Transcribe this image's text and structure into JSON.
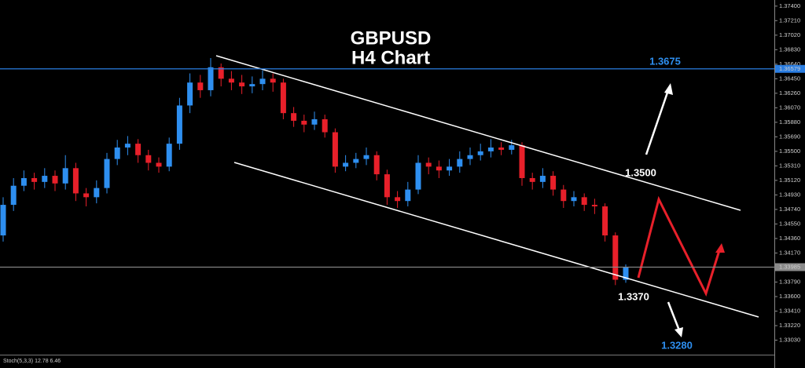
{
  "chart_data": {
    "type": "candlestick",
    "title": "GBPUSD",
    "subtitle": "H4 Chart",
    "up_color": "#2e8ff0",
    "down_color": "#e8202a",
    "ylim": [
      1.3284,
      1.3748
    ],
    "yticks": [
      {
        "value": 1.374,
        "label": "1.37400"
      },
      {
        "value": 1.3721,
        "label": "1.37210"
      },
      {
        "value": 1.3702,
        "label": "1.37020"
      },
      {
        "value": 1.3683,
        "label": "1.36830"
      },
      {
        "value": 1.3664,
        "label": "1.36640"
      },
      {
        "value": 1.3645,
        "label": "1.36450"
      },
      {
        "value": 1.3626,
        "label": "1.36260"
      },
      {
        "value": 1.3607,
        "label": "1.36070"
      },
      {
        "value": 1.3588,
        "label": "1.35880"
      },
      {
        "value": 1.3569,
        "label": "1.35690"
      },
      {
        "value": 1.355,
        "label": "1.35500"
      },
      {
        "value": 1.3531,
        "label": "1.35310"
      },
      {
        "value": 1.3512,
        "label": "1.35120"
      },
      {
        "value": 1.3493,
        "label": "1.34930"
      },
      {
        "value": 1.3474,
        "label": "1.34740"
      },
      {
        "value": 1.3455,
        "label": "1.34550"
      },
      {
        "value": 1.3436,
        "label": "1.34360"
      },
      {
        "value": 1.3417,
        "label": "1.34170"
      },
      {
        "value": 1.3379,
        "label": "1.33790"
      },
      {
        "value": 1.336,
        "label": "1.33600"
      },
      {
        "value": 1.3341,
        "label": "1.33410"
      },
      {
        "value": 1.3322,
        "label": "1.33220"
      },
      {
        "value": 1.3303,
        "label": "1.33030"
      }
    ],
    "hlines": [
      {
        "value": 1.36579,
        "label": "1.36579",
        "color": "#2a7de1"
      },
      {
        "value": 1.33985,
        "label": "1.33985",
        "color": "#8a8a8a"
      }
    ],
    "open": [
      1.344,
      1.348,
      1.3505,
      1.3515,
      1.351,
      1.3518,
      1.3508,
      1.3528,
      1.3495,
      1.349,
      1.3502,
      1.354,
      1.3555,
      1.356,
      1.3545,
      1.3535,
      1.353,
      1.356,
      1.361,
      1.364,
      1.363,
      1.366,
      1.3645,
      1.364,
      1.3635,
      1.3638,
      1.3645,
      1.364,
      1.36,
      1.359,
      1.3585,
      1.3592,
      1.3575,
      1.353,
      1.3535,
      1.354,
      1.3545,
      1.352,
      1.349,
      1.3485,
      1.35,
      1.3535,
      1.353,
      1.3525,
      1.353,
      1.354,
      1.3545,
      1.355,
      1.3555,
      1.3552,
      1.3558,
      1.3515,
      1.351,
      1.3518,
      1.35,
      1.3485,
      1.349,
      1.348,
      1.3478,
      1.344,
      1.3382
    ],
    "high": [
      1.349,
      1.3515,
      1.3525,
      1.3522,
      1.3528,
      1.3525,
      1.3545,
      1.3535,
      1.3502,
      1.3512,
      1.3548,
      1.3565,
      1.357,
      1.3566,
      1.3552,
      1.3542,
      1.3568,
      1.362,
      1.3652,
      1.365,
      1.3672,
      1.3665,
      1.3655,
      1.365,
      1.3648,
      1.3656,
      1.3652,
      1.3645,
      1.3608,
      1.3598,
      1.3602,
      1.3598,
      1.358,
      1.3545,
      1.3548,
      1.3555,
      1.355,
      1.3526,
      1.3498,
      1.351,
      1.3545,
      1.3542,
      1.3538,
      1.354,
      1.355,
      1.3555,
      1.356,
      1.3566,
      1.3562,
      1.3565,
      1.3562,
      1.3522,
      1.3528,
      1.3524,
      1.3506,
      1.3498,
      1.3495,
      1.3488,
      1.3482,
      1.3444,
      1.3402
    ],
    "low": [
      1.3432,
      1.3472,
      1.3498,
      1.35,
      1.3502,
      1.3498,
      1.35,
      1.3485,
      1.3478,
      1.3482,
      1.3495,
      1.3532,
      1.3545,
      1.3535,
      1.3525,
      1.3522,
      1.3524,
      1.3552,
      1.36,
      1.362,
      1.3622,
      1.3635,
      1.363,
      1.3625,
      1.3626,
      1.363,
      1.3628,
      1.3592,
      1.3582,
      1.3575,
      1.3578,
      1.3568,
      1.3522,
      1.3524,
      1.3528,
      1.3532,
      1.3512,
      1.348,
      1.3476,
      1.3478,
      1.3494,
      1.352,
      1.3515,
      1.3518,
      1.3522,
      1.3532,
      1.3538,
      1.3542,
      1.3545,
      1.3546,
      1.3505,
      1.35,
      1.3502,
      1.3492,
      1.3476,
      1.3478,
      1.3472,
      1.3468,
      1.3432,
      1.3375,
      1.3378
    ],
    "close": [
      1.348,
      1.3505,
      1.3515,
      1.351,
      1.3518,
      1.3508,
      1.3528,
      1.3495,
      1.349,
      1.3502,
      1.354,
      1.3555,
      1.356,
      1.3545,
      1.3535,
      1.353,
      1.356,
      1.361,
      1.364,
      1.363,
      1.366,
      1.3645,
      1.364,
      1.3635,
      1.3638,
      1.3645,
      1.364,
      1.36,
      1.359,
      1.3585,
      1.3592,
      1.3575,
      1.353,
      1.3535,
      1.354,
      1.3545,
      1.352,
      1.349,
      1.3485,
      1.35,
      1.3535,
      1.353,
      1.3525,
      1.353,
      1.354,
      1.3545,
      1.355,
      1.3555,
      1.3552,
      1.3558,
      1.3515,
      1.351,
      1.3518,
      1.35,
      1.3485,
      1.349,
      1.348,
      1.3478,
      1.344,
      1.3382,
      1.3398
    ],
    "annotations": [
      "1.3675",
      "1.3500",
      "1.3370",
      "1.3280"
    ],
    "indicator_label": "Stoch(5,3,3) 12.78 6.46"
  }
}
